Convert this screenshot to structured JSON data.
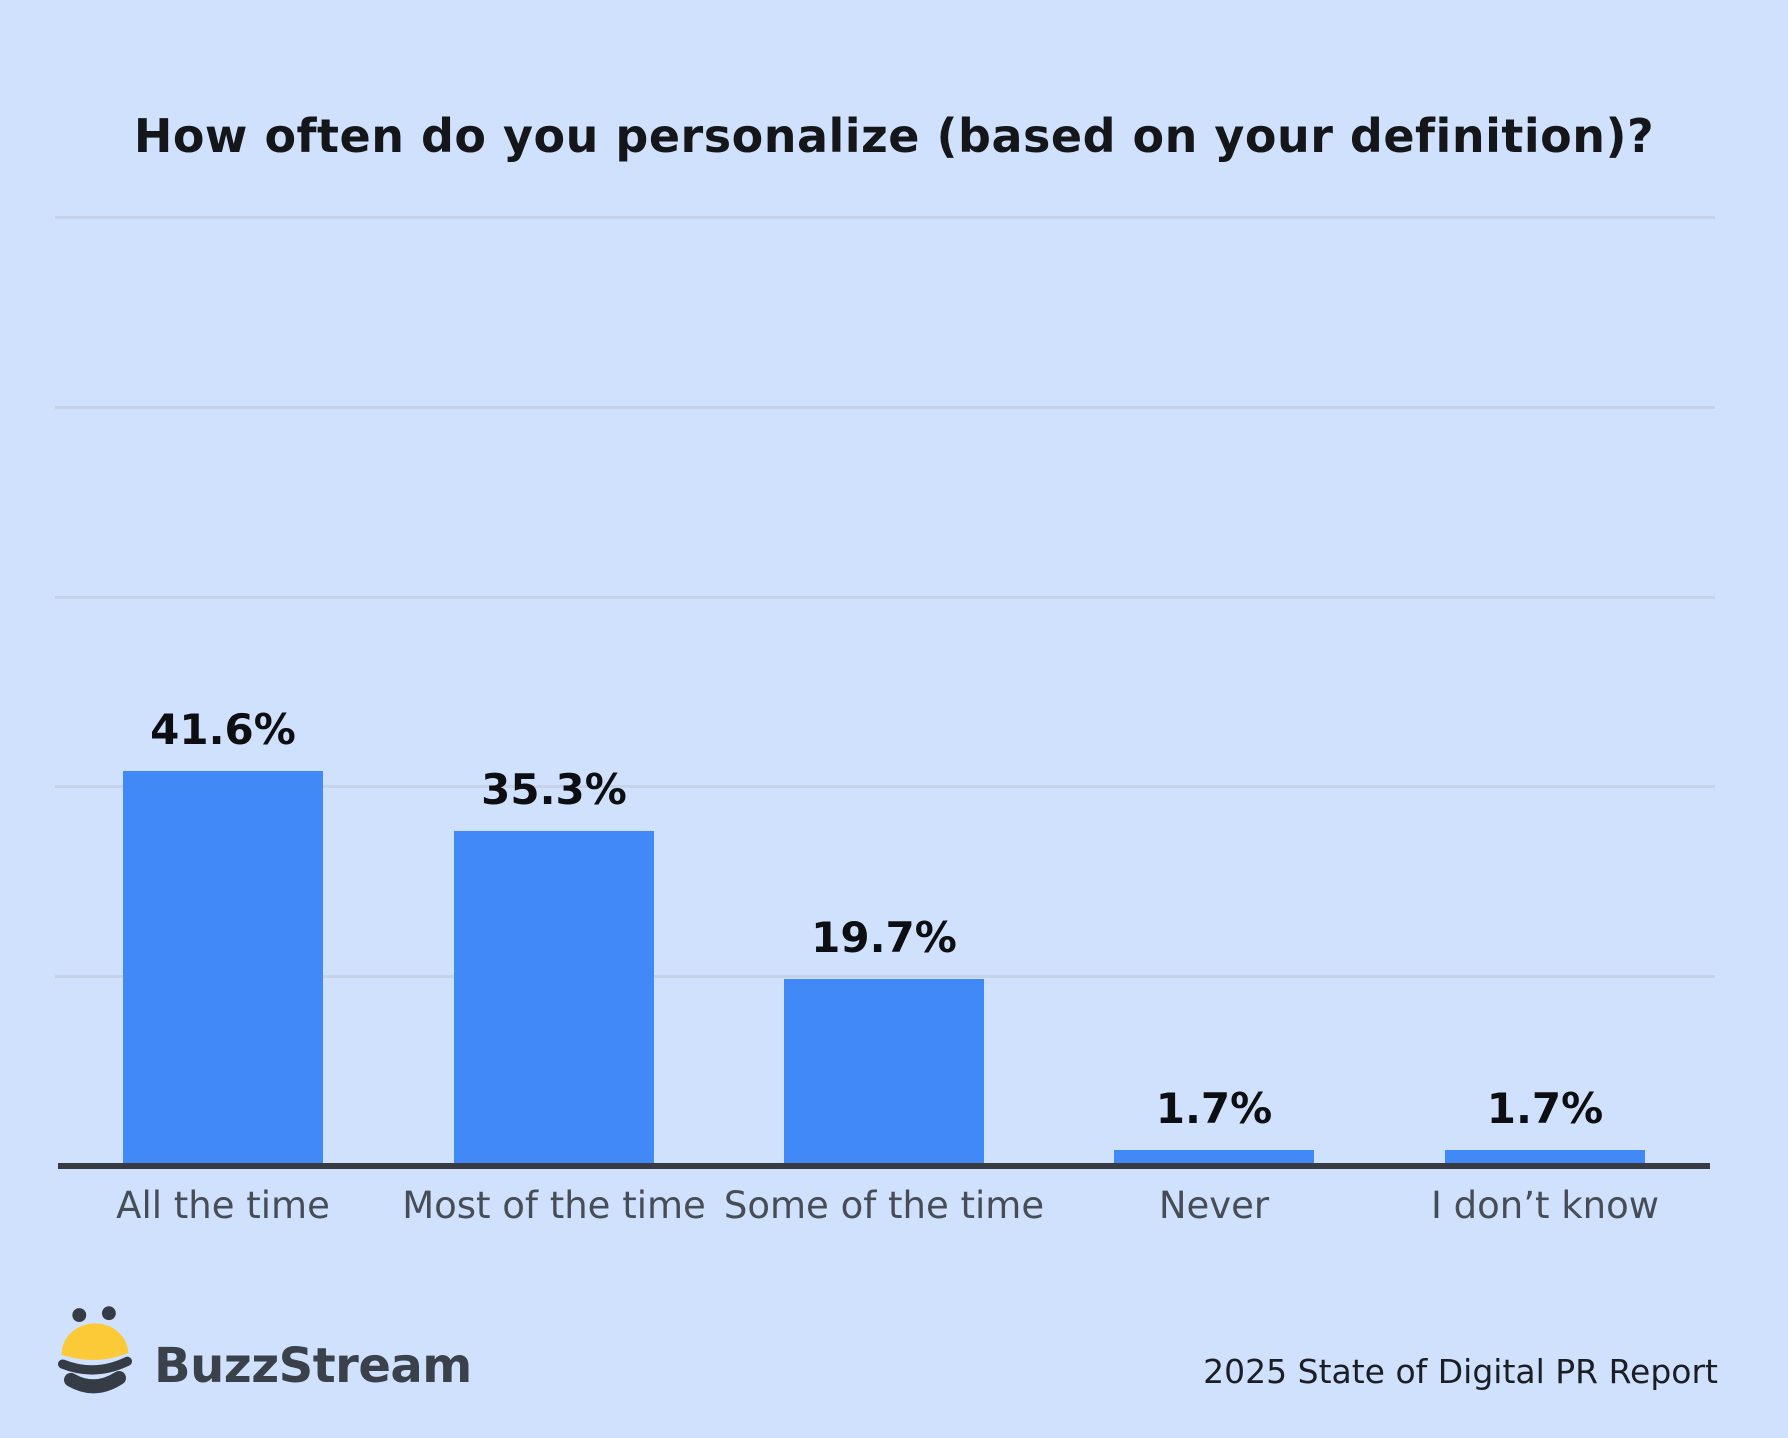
{
  "title": "How often do you personalize (based on your definition)?",
  "chart_data": {
    "type": "bar",
    "title": "How often do you personalize (based on your definition)?",
    "categories": [
      "All the time",
      "Most of the time",
      "Some of the time",
      "Never",
      "I don’t know"
    ],
    "values": [
      41.6,
      35.3,
      19.7,
      1.7,
      1.7
    ],
    "value_labels": [
      "41.6%",
      "35.3%",
      "19.7%",
      "1.7%",
      "1.7%"
    ],
    "xlabel": "",
    "ylabel": "",
    "ylim": [
      0,
      100
    ],
    "grid_step": 20,
    "grid": "horizontal-only",
    "legend": "none",
    "unit": "%"
  },
  "footer": {
    "logo_text": "BuzzStream",
    "logo_icon": "buzzstream-bee-icon",
    "credit": "2025 State of Digital PR Report"
  },
  "colors": {
    "background": "#d0e1fd",
    "bar": "#4189f6",
    "gridline": "#c5d2e8",
    "axis": "#383c42",
    "title": "#14161a",
    "value_label": "#0c0e11",
    "x_label": "#474d56",
    "logo_text": "#3a414b",
    "bee_yellow": "#fcc937",
    "bee_dark": "#363c46",
    "credit": "#1b1e24"
  }
}
